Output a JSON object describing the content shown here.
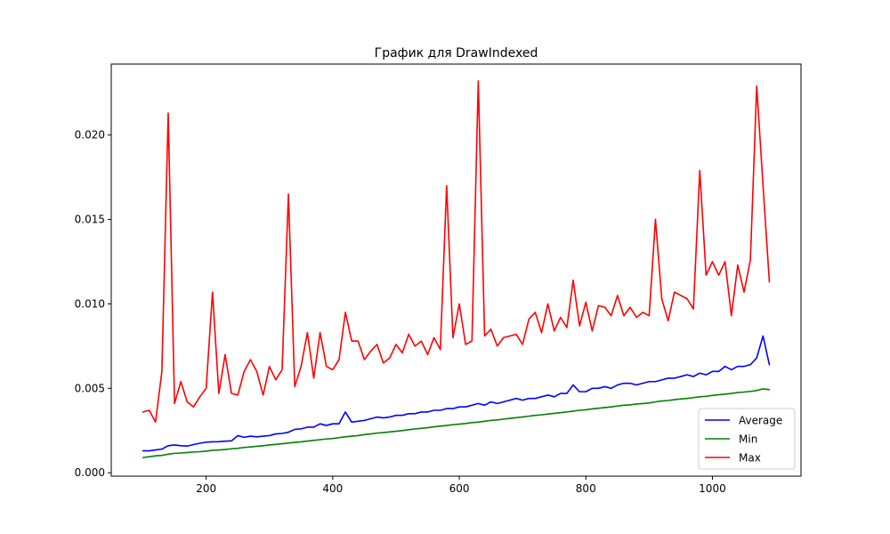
{
  "chart_data": {
    "type": "line",
    "title": "График для DrawIndexed",
    "xlabel": "",
    "ylabel": "",
    "xlim": [
      50,
      1140
    ],
    "ylim": [
      -0.0002,
      0.0242
    ],
    "x_ticks": [
      200,
      400,
      600,
      800,
      1000
    ],
    "y_ticks": [
      0.0,
      0.005,
      0.01,
      0.015,
      0.02
    ],
    "x_tick_labels": [
      "200",
      "400",
      "600",
      "800",
      "1000"
    ],
    "y_tick_labels": [
      "0.000",
      "0.005",
      "0.010",
      "0.015",
      "0.020"
    ],
    "grid": false,
    "legend_position": "lower-right",
    "x": [
      100,
      110,
      120,
      130,
      140,
      150,
      160,
      170,
      180,
      190,
      200,
      210,
      220,
      230,
      240,
      250,
      260,
      270,
      280,
      290,
      300,
      310,
      320,
      330,
      340,
      350,
      360,
      370,
      380,
      390,
      400,
      410,
      420,
      430,
      440,
      450,
      460,
      470,
      480,
      490,
      500,
      510,
      520,
      530,
      540,
      550,
      560,
      570,
      580,
      590,
      600,
      610,
      620,
      630,
      640,
      650,
      660,
      670,
      680,
      690,
      700,
      710,
      720,
      730,
      740,
      750,
      760,
      770,
      780,
      790,
      800,
      810,
      820,
      830,
      840,
      850,
      860,
      870,
      880,
      890,
      900,
      910,
      920,
      930,
      940,
      950,
      960,
      970,
      980,
      990,
      1000,
      1010,
      1020,
      1030,
      1040,
      1050,
      1060,
      1070,
      1080,
      1090
    ],
    "series": [
      {
        "name": "Average",
        "color": "#0000ff",
        "values": [
          0.0013,
          0.0013,
          0.00135,
          0.0014,
          0.0016,
          0.00165,
          0.0016,
          0.00158,
          0.00167,
          0.00175,
          0.00181,
          0.00183,
          0.00184,
          0.00187,
          0.00189,
          0.0022,
          0.0021,
          0.00217,
          0.00213,
          0.00217,
          0.0022,
          0.0023,
          0.00233,
          0.0024,
          0.00257,
          0.0026,
          0.0027,
          0.0027,
          0.0029,
          0.0028,
          0.0029,
          0.0029,
          0.0036,
          0.003,
          0.00305,
          0.0031,
          0.0032,
          0.0033,
          0.00325,
          0.0033,
          0.0034,
          0.0034,
          0.0035,
          0.0035,
          0.0036,
          0.0036,
          0.0037,
          0.0037,
          0.0038,
          0.0038,
          0.0039,
          0.0039,
          0.004,
          0.0041,
          0.004,
          0.0042,
          0.0041,
          0.0042,
          0.0043,
          0.0044,
          0.0043,
          0.0044,
          0.0044,
          0.0045,
          0.0046,
          0.0045,
          0.0047,
          0.0047,
          0.0052,
          0.0048,
          0.0048,
          0.005,
          0.005,
          0.0051,
          0.005,
          0.0052,
          0.0053,
          0.0053,
          0.0052,
          0.0053,
          0.0054,
          0.0054,
          0.0055,
          0.0056,
          0.0056,
          0.0057,
          0.0058,
          0.0057,
          0.0059,
          0.0058,
          0.006,
          0.006,
          0.0063,
          0.0061,
          0.0063,
          0.0063,
          0.0064,
          0.0068,
          0.0081,
          0.0064
        ]
      },
      {
        "name": "Min",
        "color": "#008000",
        "values": [
          0.0009,
          0.00095,
          0.001,
          0.00103,
          0.0011,
          0.00115,
          0.00117,
          0.0012,
          0.00123,
          0.00125,
          0.00128,
          0.00133,
          0.00135,
          0.00138,
          0.00142,
          0.00145,
          0.0015,
          0.00153,
          0.00157,
          0.0016,
          0.00165,
          0.00168,
          0.00172,
          0.00176,
          0.0018,
          0.00183,
          0.00188,
          0.00192,
          0.00196,
          0.002,
          0.00203,
          0.00208,
          0.00213,
          0.00217,
          0.0022,
          0.00226,
          0.0023,
          0.00235,
          0.00238,
          0.00242,
          0.00246,
          0.0025,
          0.00255,
          0.0026,
          0.00263,
          0.00267,
          0.00272,
          0.00276,
          0.0028,
          0.00285,
          0.00288,
          0.00292,
          0.00297,
          0.003,
          0.00305,
          0.0031,
          0.00313,
          0.00318,
          0.00322,
          0.00326,
          0.0033,
          0.00335,
          0.0034,
          0.00343,
          0.00348,
          0.00352,
          0.00356,
          0.0036,
          0.00365,
          0.0037,
          0.00373,
          0.00378,
          0.00382,
          0.00386,
          0.0039,
          0.00395,
          0.004,
          0.00402,
          0.00407,
          0.0041,
          0.00413,
          0.0042,
          0.00425,
          0.00428,
          0.00433,
          0.00437,
          0.0044,
          0.00445,
          0.0045,
          0.00453,
          0.00458,
          0.00462,
          0.00466,
          0.0047,
          0.00475,
          0.00478,
          0.00482,
          0.00487,
          0.00497,
          0.00492
        ]
      },
      {
        "name": "Max",
        "color": "#ff0000",
        "values": [
          0.0036,
          0.0037,
          0.003,
          0.006,
          0.0213,
          0.0041,
          0.0054,
          0.0042,
          0.0039,
          0.0045,
          0.005,
          0.0107,
          0.0047,
          0.007,
          0.0047,
          0.0046,
          0.006,
          0.0067,
          0.006,
          0.0046,
          0.0063,
          0.0055,
          0.0061,
          0.0165,
          0.0051,
          0.0063,
          0.0083,
          0.0056,
          0.0083,
          0.0063,
          0.0061,
          0.0067,
          0.0095,
          0.0078,
          0.0078,
          0.0067,
          0.0072,
          0.0076,
          0.0065,
          0.0068,
          0.0076,
          0.0071,
          0.0082,
          0.0075,
          0.0078,
          0.007,
          0.008,
          0.0073,
          0.017,
          0.008,
          0.01,
          0.0076,
          0.0078,
          0.0232,
          0.0081,
          0.0085,
          0.0075,
          0.008,
          0.0081,
          0.0082,
          0.0076,
          0.0091,
          0.0095,
          0.0083,
          0.01,
          0.0084,
          0.0092,
          0.0086,
          0.0114,
          0.0087,
          0.0101,
          0.0084,
          0.0099,
          0.0098,
          0.0093,
          0.0105,
          0.0093,
          0.0098,
          0.0092,
          0.0095,
          0.0093,
          0.015,
          0.0103,
          0.009,
          0.0107,
          0.0105,
          0.0103,
          0.0097,
          0.0179,
          0.0117,
          0.0125,
          0.0117,
          0.0125,
          0.0093,
          0.0123,
          0.0107,
          0.0126,
          0.0229,
          0.017,
          0.0113
        ]
      }
    ]
  }
}
